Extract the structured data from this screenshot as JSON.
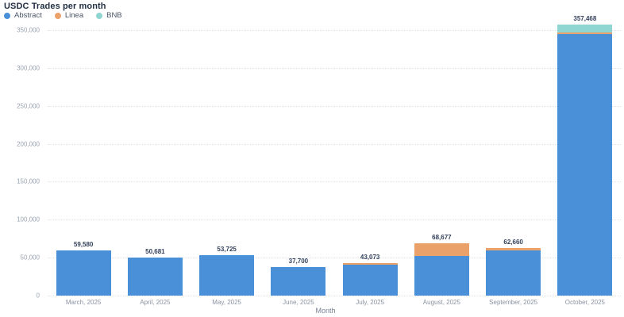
{
  "header": {
    "title": "USDC Trades per month"
  },
  "chart_data": {
    "type": "bar",
    "stacked": true,
    "title": "USDC Trades per month",
    "xlabel": "Month",
    "ylabel": "",
    "ylim": [
      0,
      350000
    ],
    "ytick_values": [
      0,
      50000,
      100000,
      150000,
      200000,
      250000,
      300000,
      350000
    ],
    "ytick_labels": [
      "0",
      "50,000",
      "100,000",
      "150,000",
      "200,000",
      "250,000",
      "300,000",
      "350,000"
    ],
    "grid": "dotted-horizontal",
    "legend_position": "top-left",
    "categories": [
      "March, 2025",
      "April, 2025",
      "May, 2025",
      "June, 2025",
      "July, 2025",
      "August, 2025",
      "September, 2025",
      "October, 2025"
    ],
    "series": [
      {
        "name": "Abstract",
        "color": "#4a90d8",
        "values": [
          59580,
          50681,
          53725,
          37700,
          40500,
          52000,
          59400,
          344468
        ]
      },
      {
        "name": "Linea",
        "color": "#eba26a",
        "values": [
          0,
          0,
          0,
          0,
          2573,
          16677,
          3260,
          2000
        ]
      },
      {
        "name": "BNB",
        "color": "#8fd6d2",
        "values": [
          0,
          0,
          0,
          0,
          0,
          0,
          0,
          11000
        ]
      }
    ],
    "totals": [
      59580,
      50681,
      53725,
      37700,
      43073,
      68677,
      62660,
      357468
    ],
    "total_labels": [
      "59,580",
      "50,681",
      "53,725",
      "37,700",
      "43,073",
      "68,677",
      "62,660",
      "357,468"
    ]
  },
  "colors": {
    "background": "#ffffff",
    "title_text": "#233044",
    "legend_text": "#4a5568",
    "tick_text": "#9aa3b2",
    "value_label_text": "#33415c",
    "axis_title_text": "#7a8294",
    "gridline": "#dfe2e8"
  }
}
